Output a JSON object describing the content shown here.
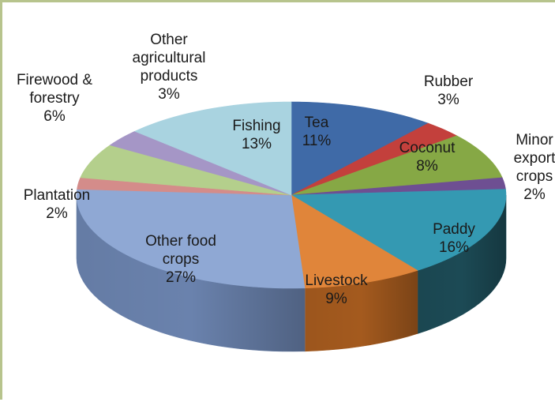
{
  "chart_data": {
    "type": "pie",
    "three_d": true,
    "slices": [
      {
        "label": "Tea",
        "value": 11,
        "display": "11%",
        "color": "#3f6aa7",
        "side_color": "#2c4b78"
      },
      {
        "label": "Rubber",
        "value": 3,
        "display": "3%",
        "color": "#c3403c",
        "side_color": "#8a2c2a"
      },
      {
        "label": "Coconut",
        "value": 8,
        "display": "8%",
        "color": "#86a845",
        "side_color": "#5f7a30"
      },
      {
        "label": "Minor export crops",
        "value": 2,
        "display": "2%",
        "color": "#6e4f92",
        "side_color": "#4d3766"
      },
      {
        "label": "Paddy",
        "value": 16,
        "display": "16%",
        "color": "#3499b2",
        "side_color": "#1c4a55"
      },
      {
        "label": "Livestock",
        "value": 9,
        "display": "9%",
        "color": "#e0853a",
        "side_color": "#a45a1e"
      },
      {
        "label": "Other food crops",
        "value": 27,
        "display": "27%",
        "color": "#8fa8d4",
        "side_color": "#6a82ad"
      },
      {
        "label": "Plantation",
        "value": 2,
        "display": "2%",
        "color": "#d48c8a",
        "side_color": "#9e6462"
      },
      {
        "label": "Firewood & forestry",
        "value": 6,
        "display": "6%",
        "color": "#b4cf8c",
        "side_color": "#8ba266"
      },
      {
        "label": "Other agricultural products",
        "value": 3,
        "display": "3%",
        "color": "#a596c6",
        "side_color": "#7b6f98"
      },
      {
        "label": "Fishing",
        "value": 13,
        "display": "13%",
        "color": "#a9d3e0",
        "side_color": "#7ca4b0"
      }
    ],
    "labels": [
      {
        "lines": [
          "Tea",
          "11%"
        ]
      },
      {
        "lines": [
          "Rubber",
          "3%"
        ]
      },
      {
        "lines": [
          "Coconut",
          "8%"
        ]
      },
      {
        "lines": [
          "Minor",
          "export",
          "crops",
          "2%"
        ]
      },
      {
        "lines": [
          "Paddy",
          "16%"
        ]
      },
      {
        "lines": [
          "Livestock",
          "9%"
        ]
      },
      {
        "lines": [
          "Other food",
          "crops",
          "27%"
        ]
      },
      {
        "lines": [
          "Plantation",
          "2%"
        ]
      },
      {
        "lines": [
          "Firewood &",
          "forestry",
          "6%"
        ]
      },
      {
        "lines": [
          "Other",
          "agricultural",
          "products",
          "3%"
        ]
      },
      {
        "lines": [
          "Fishing",
          "13%"
        ]
      }
    ]
  }
}
